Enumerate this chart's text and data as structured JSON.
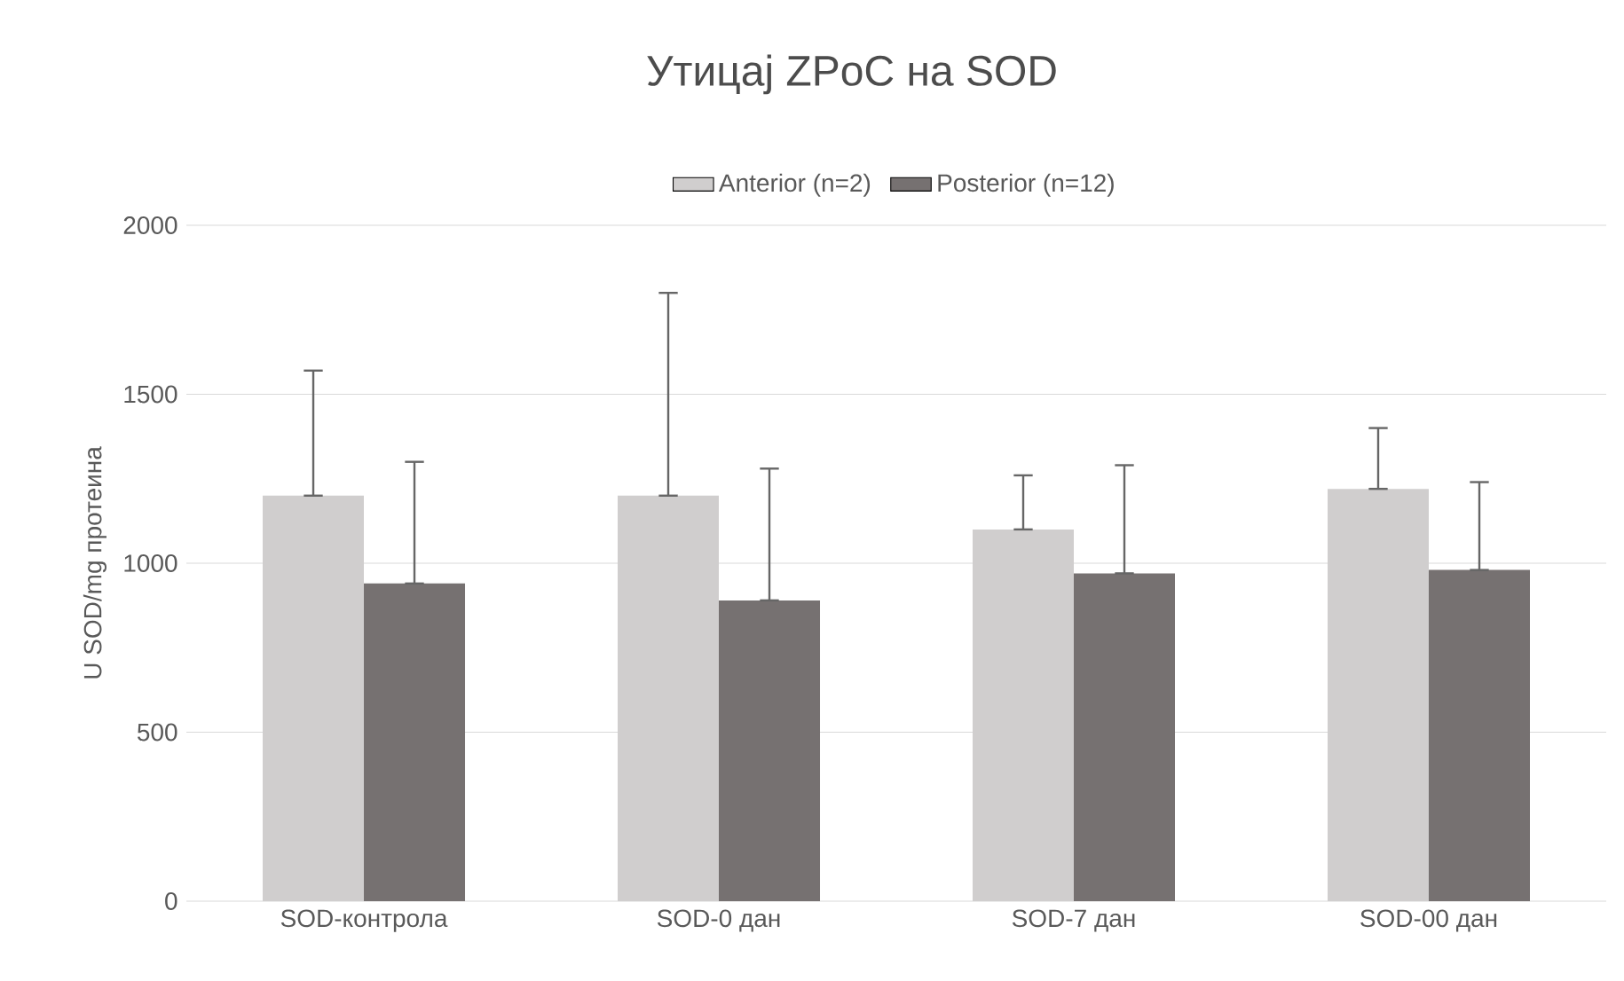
{
  "chart_data": {
    "type": "bar",
    "title": "Утицај ZPoC на SOD",
    "ylabel": "U SOD/mg протеина",
    "categories": [
      "SOD-контрола",
      "SOD-0 дан",
      "SOD-7 дан",
      "SOD-00 дан"
    ],
    "series": [
      {
        "name": "Anterior (n=2)",
        "color": "#d0cece",
        "values": [
          1200,
          1200,
          1100,
          1220
        ],
        "errors": [
          [
            1200,
            1570
          ],
          [
            1200,
            1800
          ],
          [
            1100,
            1260
          ],
          [
            1220,
            1400
          ]
        ]
      },
      {
        "name": "Posterior (n=12)",
        "color": "#767171",
        "values": [
          940,
          890,
          970,
          980
        ],
        "errors": [
          [
            940,
            1300
          ],
          [
            890,
            1280
          ],
          [
            970,
            1290
          ],
          [
            980,
            1240
          ]
        ]
      }
    ],
    "ylim": [
      0,
      2000
    ],
    "yticks": [
      0,
      500,
      1000,
      1500,
      2000
    ],
    "grid": "y",
    "legend": "top"
  }
}
